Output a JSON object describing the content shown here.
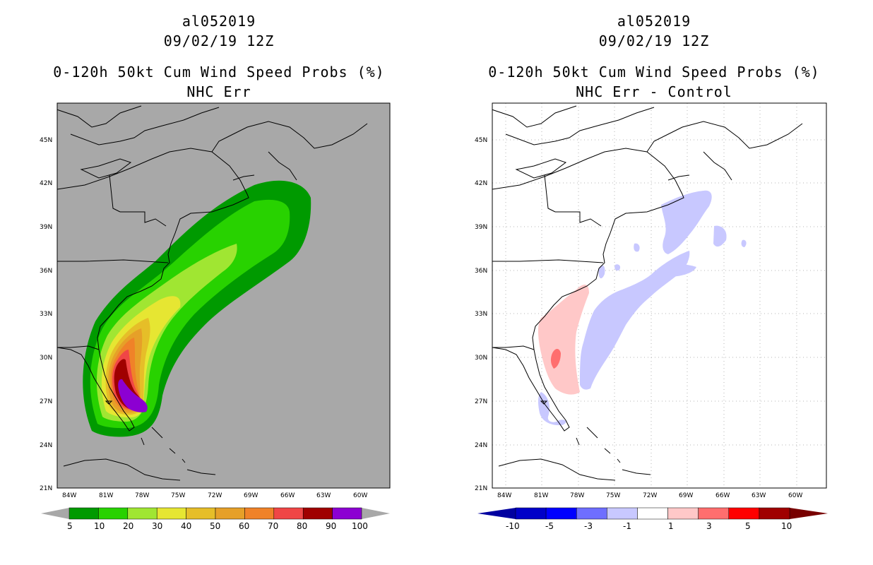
{
  "left_panel": {
    "title_lines": [
      "al052019",
      "09/02/19 12Z",
      "0-120h 50kt Cum Wind Speed Probs (%)",
      "NHC Err"
    ],
    "colorbar": {
      "colors": [
        "#009a00",
        "#28d200",
        "#a0e632",
        "#e6e632",
        "#e6be28",
        "#e6a028",
        "#f08228",
        "#f04646",
        "#a00000",
        "#8c00d2"
      ],
      "labels": [
        "5",
        "10",
        "20",
        "30",
        "40",
        "50",
        "60",
        "70",
        "80",
        "90",
        "100"
      ]
    }
  },
  "right_panel": {
    "title_lines": [
      "al052019",
      "09/02/19 12Z",
      "0-120h 50kt Cum Wind Speed Probs (%)",
      "NHC Err - Control"
    ],
    "colorbar": {
      "colors": [
        "#0000c8",
        "#0000ff",
        "#6e6eff",
        "#c8c8ff",
        "#ffffff",
        "#ffc8c8",
        "#ff6e6e",
        "#ff0000",
        "#a00000"
      ],
      "labels": [
        "-10",
        "-5",
        "-3",
        "-1",
        "1",
        "3",
        "5",
        "10"
      ]
    }
  },
  "axes": {
    "lon_labels": [
      "84W",
      "81W",
      "78W",
      "75W",
      "72W",
      "69W",
      "66W",
      "63W",
      "60W"
    ],
    "lat_labels": [
      "21N",
      "24N",
      "27N",
      "30N",
      "33N",
      "36N",
      "39N",
      "42N",
      "45N"
    ]
  },
  "colors": {
    "ocean_left": "#a8a8a8",
    "ocean_right": "#ffffff",
    "coast": "#000000"
  }
}
